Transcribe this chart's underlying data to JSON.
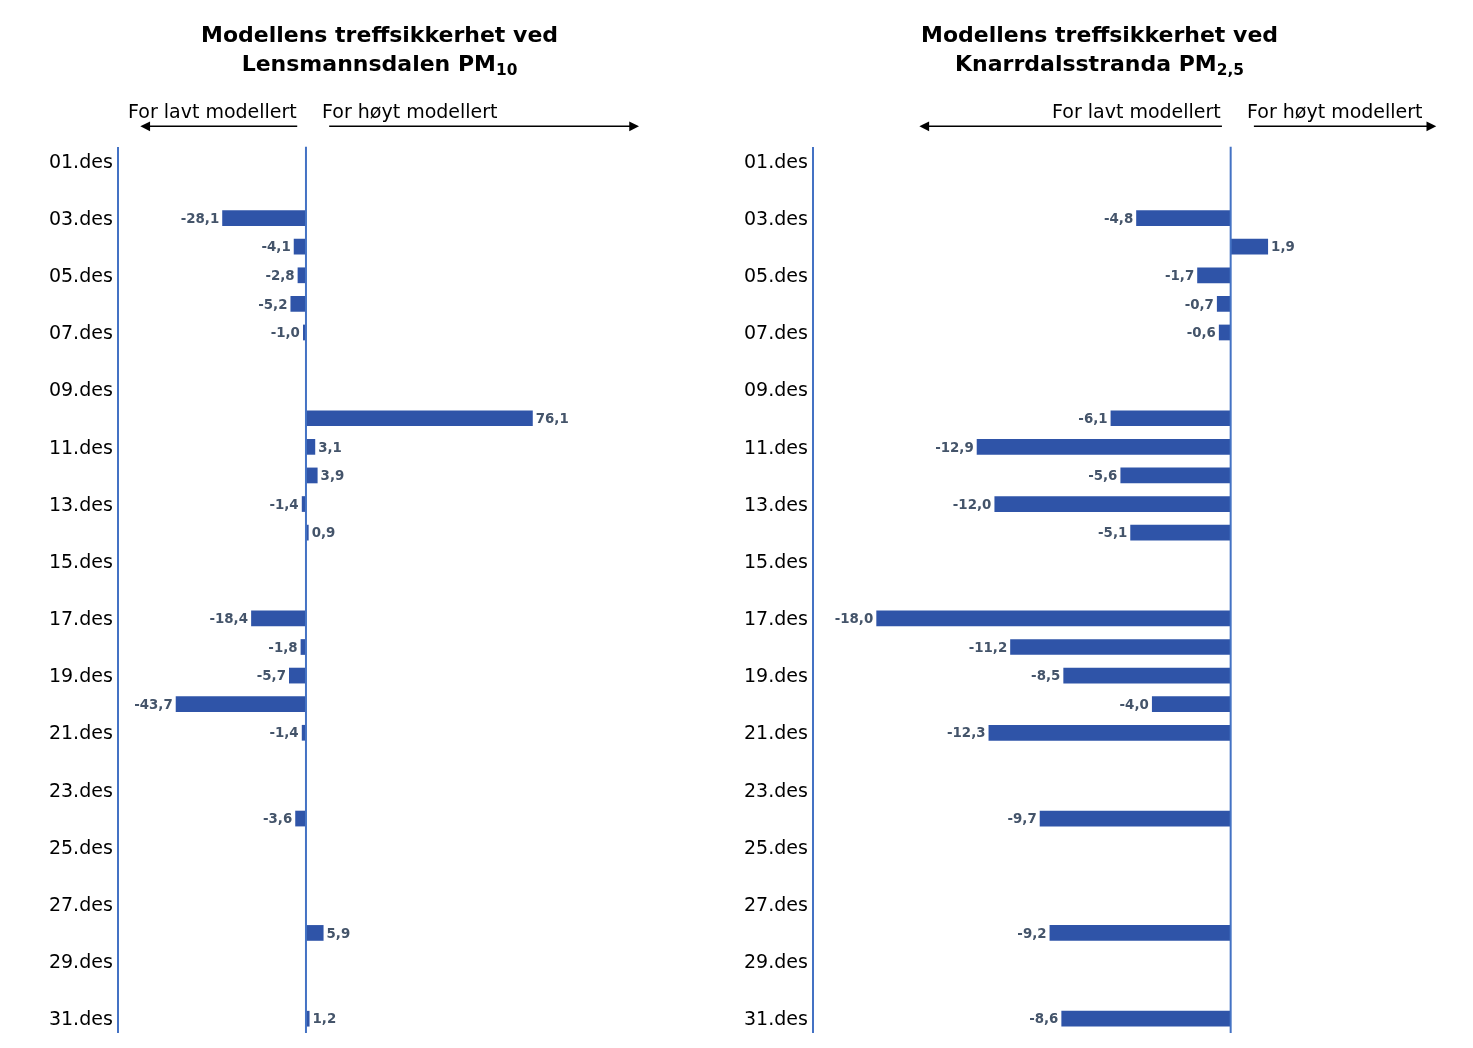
{
  "chart_data": [
    {
      "type": "bar",
      "orientation": "horizontal",
      "title": "Modellens treffsikkerhet ved\nLensmannsdalen PM$_{10}$",
      "categories": [
        "01.des",
        null,
        "03.des",
        null,
        "05.des",
        null,
        "07.des",
        null,
        "09.des",
        null,
        "11.des",
        null,
        "13.des",
        null,
        "15.des",
        null,
        "17.des",
        null,
        "19.des",
        null,
        "21.des",
        null,
        "23.des",
        null,
        "25.des",
        null,
        "27.des",
        null,
        "29.des",
        null,
        "31.des"
      ],
      "series": [
        {
          "color": "#2f54a8",
          "values": [
            null,
            null,
            -28.1,
            -4.1,
            -2.8,
            -5.2,
            -1.0,
            null,
            null,
            76.1,
            3.1,
            3.9,
            -1.4,
            0.9,
            null,
            null,
            -18.4,
            -1.8,
            -5.7,
            -43.7,
            -1.4,
            null,
            null,
            -3.6,
            null,
            null,
            null,
            5.9,
            null,
            null,
            1.2
          ],
          "value_labels": [
            null,
            null,
            "-28,1",
            "-4,1",
            "-2,8",
            "-5,2",
            "-1,0",
            null,
            null,
            "76,1",
            "3,1",
            "3,9",
            "-1,4",
            "0,9",
            null,
            null,
            "-18,4",
            "-1,8",
            "-5,7",
            "-43,7",
            "-1,4",
            null,
            null,
            "-3,6",
            null,
            null,
            null,
            "5,9",
            null,
            null,
            "1,2"
          ]
        }
      ],
      "ref_lines": [
        {
          "axis": "x",
          "value": 0,
          "color": "#4472c4"
        }
      ],
      "annotations": [
        "For lavt modellert",
        "For høyt modellert"
      ]
    },
    {
      "type": "bar",
      "orientation": "horizontal",
      "title": "Modellens treffsikkerhet ved\nKnarrdalsstranda PM$_{2,5}$",
      "categories": [
        "01.des",
        null,
        "03.des",
        null,
        "05.des",
        null,
        "07.des",
        null,
        "09.des",
        null,
        "11.des",
        null,
        "13.des",
        null,
        "15.des",
        null,
        "17.des",
        null,
        "19.des",
        null,
        "21.des",
        null,
        "23.des",
        null,
        "25.des",
        null,
        "27.des",
        null,
        "29.des",
        null,
        "31.des"
      ],
      "series": [
        {
          "color": "#2f54a8",
          "values": [
            null,
            null,
            -4.8,
            1.9,
            -1.7,
            -0.7,
            -0.6,
            null,
            null,
            -6.1,
            -12.9,
            -5.6,
            -12.0,
            -5.1,
            null,
            null,
            -18.0,
            -11.2,
            -8.5,
            -4.0,
            -12.3,
            null,
            null,
            -9.7,
            null,
            null,
            null,
            -9.2,
            null,
            null,
            -8.6
          ],
          "value_labels": [
            null,
            null,
            "-4,8",
            "1,9",
            "-1,7",
            "-0,7",
            "-0,6",
            null,
            null,
            "-6,1",
            "-12,9",
            "-5,6",
            "-12,0",
            "-5,1",
            null,
            null,
            "-18,0",
            "-11,2",
            "-8,5",
            "-4,0",
            "-12,3",
            null,
            null,
            "-9,7",
            null,
            null,
            null,
            "-9,2",
            null,
            null,
            "-8,6"
          ]
        }
      ],
      "ref_lines": [
        {
          "axis": "x",
          "value": 0,
          "color": "#4472c4"
        }
      ],
      "annotations": [
        "For lavt modellert",
        "For høyt modellert"
      ]
    }
  ]
}
